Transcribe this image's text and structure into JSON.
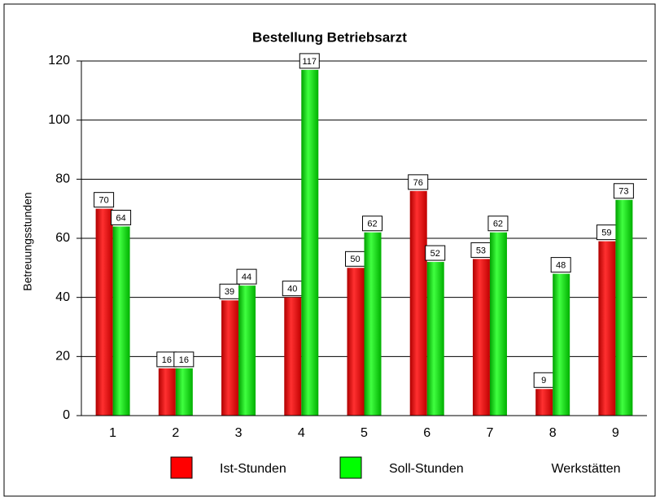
{
  "chart_data": {
    "type": "bar",
    "title": "Bestellung Betriebsarzt",
    "x_label": "Werkstätten",
    "y_label": "Betreuungsstunden",
    "categories": [
      "1",
      "2",
      "3",
      "4",
      "5",
      "6",
      "7",
      "8",
      "9"
    ],
    "series": [
      {
        "name": "Ist-Stunden",
        "color": "#ff0000",
        "values": [
          70,
          16,
          39,
          40,
          50,
          76,
          53,
          9,
          59
        ]
      },
      {
        "name": "Soll-Stunden",
        "color": "#00ff00",
        "values": [
          64,
          16,
          44,
          117,
          62,
          52,
          62,
          48,
          73
        ]
      }
    ],
    "ylim": [
      0,
      120
    ],
    "yticks": [
      0,
      20,
      40,
      60,
      80,
      100,
      120
    ],
    "grid": true
  }
}
